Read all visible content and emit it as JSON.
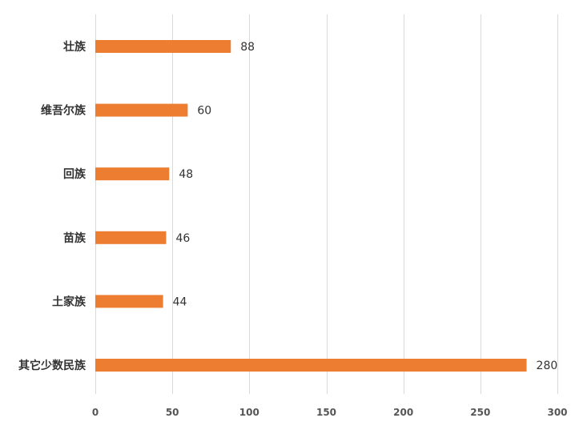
{
  "chart_data": {
    "type": "bar",
    "orientation": "horizontal",
    "categories": [
      "壮族",
      "维吾尔族",
      "回族",
      "苗族",
      "土家族",
      "其它少数民族"
    ],
    "values": [
      88,
      60,
      48,
      46,
      44,
      280
    ],
    "xlim": [
      0,
      300
    ],
    "xticks": [
      0,
      50,
      100,
      150,
      200,
      250,
      300
    ],
    "grid": "vertical",
    "legend": "none",
    "data_labels": true,
    "colors": {
      "bar": "#ed7d31",
      "grid": "#d9d9d9",
      "text": "#333333"
    }
  }
}
